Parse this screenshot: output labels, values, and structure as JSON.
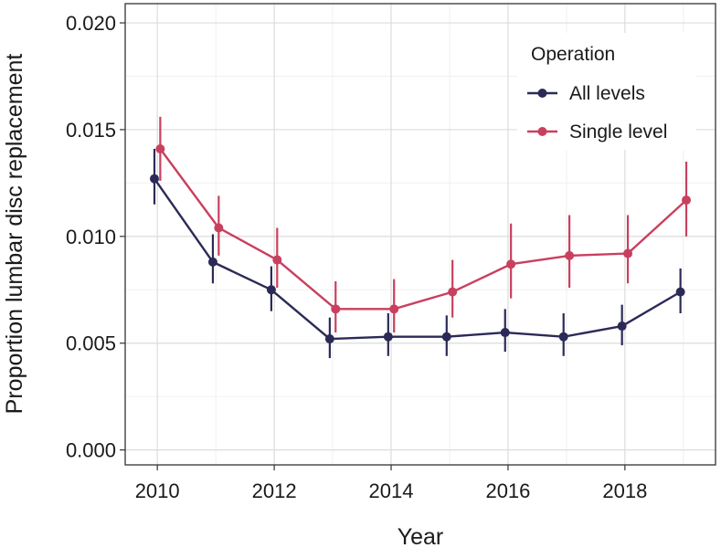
{
  "chart_data": {
    "type": "line",
    "title": "",
    "xlabel": "Year",
    "ylabel": "Proportion lumbar disc replacement",
    "xlim": [
      2009.45,
      2019.55
    ],
    "ylim": [
      -0.0007,
      0.0209
    ],
    "x_ticks": [
      2010,
      2012,
      2014,
      2016,
      2018
    ],
    "x_tick_labels": [
      "2010",
      "2012",
      "2014",
      "2016",
      "2018"
    ],
    "y_ticks": [
      0.0,
      0.005,
      0.01,
      0.015,
      0.02
    ],
    "y_tick_labels": [
      "0.000",
      "0.005",
      "0.010",
      "0.015",
      "0.020"
    ],
    "grid": true,
    "legend": {
      "title": "Operation",
      "placement": "top-right"
    },
    "x": [
      2010,
      2011,
      2012,
      2013,
      2014,
      2015,
      2016,
      2017,
      2018,
      2019
    ],
    "series": [
      {
        "name": "All levels",
        "color": "#2b2a57",
        "values": [
          0.0127,
          0.0088,
          0.0075,
          0.0052,
          0.0053,
          0.0053,
          0.0055,
          0.0053,
          0.0058,
          0.0074
        ],
        "lower": [
          0.0115,
          0.0078,
          0.0065,
          0.0043,
          0.0044,
          0.0044,
          0.0046,
          0.0044,
          0.0049,
          0.0064
        ],
        "upper": [
          0.0141,
          0.0101,
          0.0086,
          0.0062,
          0.0064,
          0.0063,
          0.0066,
          0.0064,
          0.0068,
          0.0085
        ]
      },
      {
        "name": "Single level",
        "color": "#c9405f",
        "values": [
          0.0141,
          0.0104,
          0.0089,
          0.0066,
          0.0066,
          0.0074,
          0.0087,
          0.0091,
          0.0092,
          0.0117
        ],
        "lower": [
          0.0126,
          0.0091,
          0.0076,
          0.0055,
          0.0055,
          0.0062,
          0.0071,
          0.0076,
          0.0078,
          0.01
        ],
        "upper": [
          0.0156,
          0.0119,
          0.0104,
          0.0079,
          0.008,
          0.0089,
          0.0106,
          0.011,
          0.011,
          0.0135
        ]
      }
    ]
  }
}
